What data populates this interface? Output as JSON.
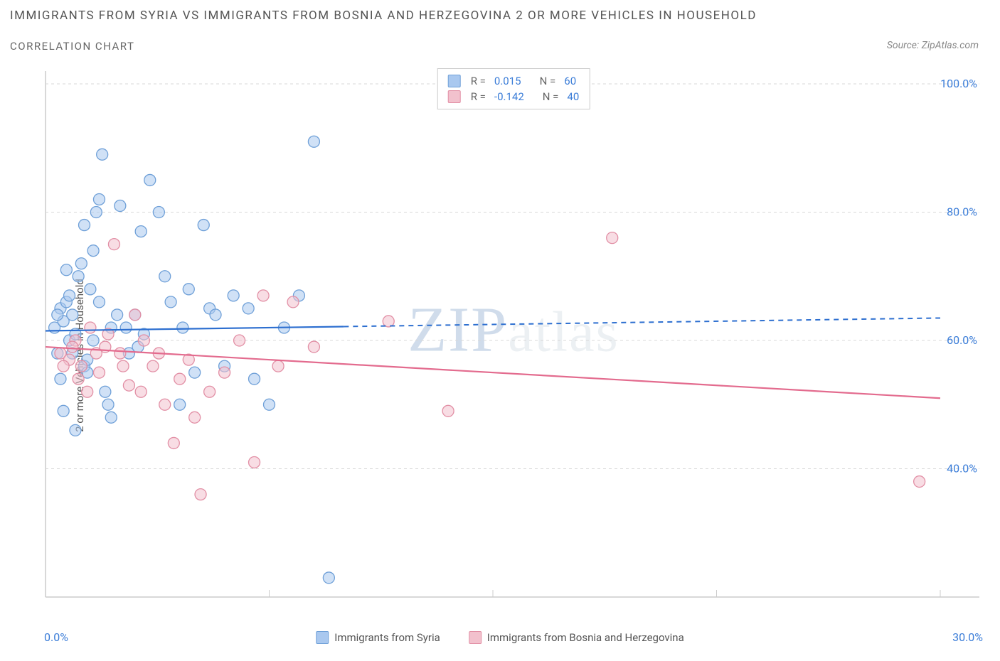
{
  "title": "IMMIGRANTS FROM SYRIA VS IMMIGRANTS FROM BOSNIA AND HERZEGOVINA 2 OR MORE VEHICLES IN HOUSEHOLD",
  "subtitle": "CORRELATION CHART",
  "source": "Source: ZipAtlas.com",
  "ylabel": "2 or more Vehicles in Household",
  "watermark_main": "ZIP",
  "watermark_sub": "atlas",
  "chart": {
    "type": "scatter",
    "background_color": "#ffffff",
    "grid_color": "#d8d8d8",
    "axis_color": "#cccccc",
    "tick_label_color": "#3b7dd8",
    "x_range": [
      0,
      30
    ],
    "y_range": [
      20,
      102
    ],
    "x_ticks": [
      0,
      30
    ],
    "x_tick_labels": [
      "0.0%",
      "30.0%"
    ],
    "y_ticks": [
      40,
      60,
      80,
      100
    ],
    "y_tick_labels": [
      "40.0%",
      "60.0%",
      "80.0%",
      "100.0%"
    ],
    "x_grid_at": [
      7.5,
      15,
      22.5,
      30
    ],
    "marker_radius": 8,
    "marker_opacity": 0.55,
    "series": [
      {
        "name": "Immigrants from Syria",
        "fill": "#a9c8ef",
        "stroke": "#6fa0d8",
        "line_color": "#2d6fd0",
        "R": "0.015",
        "N": "60",
        "trend": {
          "x1": 0,
          "y1": 61.5,
          "x2": 30,
          "y2": 63.5,
          "solid_until_x": 10
        },
        "points": [
          [
            0.3,
            62
          ],
          [
            0.4,
            58
          ],
          [
            0.5,
            65
          ],
          [
            0.6,
            63
          ],
          [
            0.7,
            66
          ],
          [
            0.8,
            60
          ],
          [
            0.9,
            64
          ],
          [
            1.0,
            61
          ],
          [
            1.1,
            70
          ],
          [
            1.2,
            72
          ],
          [
            1.3,
            56
          ],
          [
            1.4,
            55
          ],
          [
            1.5,
            68
          ],
          [
            1.6,
            74
          ],
          [
            1.7,
            80
          ],
          [
            1.8,
            82
          ],
          [
            1.9,
            89
          ],
          [
            2.0,
            52
          ],
          [
            2.1,
            50
          ],
          [
            2.2,
            48
          ],
          [
            2.5,
            81
          ],
          [
            2.7,
            62
          ],
          [
            3.0,
            64
          ],
          [
            3.2,
            77
          ],
          [
            3.5,
            85
          ],
          [
            3.8,
            80
          ],
          [
            4.0,
            70
          ],
          [
            4.2,
            66
          ],
          [
            4.5,
            50
          ],
          [
            4.8,
            68
          ],
          [
            5.0,
            55
          ],
          [
            5.3,
            78
          ],
          [
            5.5,
            65
          ],
          [
            6.0,
            56
          ],
          [
            6.3,
            67
          ],
          [
            6.8,
            65
          ],
          [
            7.0,
            54
          ],
          [
            7.5,
            50
          ],
          [
            8.0,
            62
          ],
          [
            8.5,
            67
          ],
          [
            9.0,
            91
          ],
          [
            9.5,
            23
          ],
          [
            1.0,
            46
          ],
          [
            0.6,
            49
          ],
          [
            0.8,
            67
          ],
          [
            1.3,
            78
          ],
          [
            0.4,
            64
          ],
          [
            0.9,
            58
          ],
          [
            2.2,
            62
          ],
          [
            1.6,
            60
          ],
          [
            2.8,
            58
          ],
          [
            3.3,
            61
          ],
          [
            4.6,
            62
          ],
          [
            0.5,
            54
          ],
          [
            1.4,
            57
          ],
          [
            0.7,
            71
          ],
          [
            1.8,
            66
          ],
          [
            2.4,
            64
          ],
          [
            3.1,
            59
          ],
          [
            5.7,
            64
          ]
        ]
      },
      {
        "name": "Immigrants from Bosnia and Herzegovina",
        "fill": "#f2c1cd",
        "stroke": "#e28fa5",
        "line_color": "#e36b8e",
        "R": "-0.142",
        "N": "40",
        "trend": {
          "x1": 0,
          "y1": 59,
          "x2": 30,
          "y2": 51,
          "solid_until_x": 30
        },
        "points": [
          [
            0.5,
            58
          ],
          [
            0.8,
            57
          ],
          [
            1.0,
            60
          ],
          [
            1.2,
            56
          ],
          [
            1.5,
            62
          ],
          [
            1.8,
            55
          ],
          [
            2.0,
            59
          ],
          [
            2.3,
            75
          ],
          [
            2.5,
            58
          ],
          [
            2.8,
            53
          ],
          [
            3.0,
            64
          ],
          [
            3.3,
            60
          ],
          [
            3.6,
            56
          ],
          [
            4.0,
            50
          ],
          [
            4.3,
            44
          ],
          [
            4.8,
            57
          ],
          [
            5.2,
            36
          ],
          [
            5.5,
            52
          ],
          [
            6.0,
            55
          ],
          [
            6.5,
            60
          ],
          [
            7.0,
            41
          ],
          [
            7.3,
            67
          ],
          [
            7.8,
            56
          ],
          [
            8.3,
            66
          ],
          [
            9.0,
            59
          ],
          [
            11.5,
            63
          ],
          [
            13.5,
            49
          ],
          [
            19.0,
            76
          ],
          [
            29.3,
            38
          ],
          [
            1.1,
            54
          ],
          [
            1.4,
            52
          ],
          [
            1.7,
            58
          ],
          [
            2.1,
            61
          ],
          [
            2.6,
            56
          ],
          [
            3.2,
            52
          ],
          [
            3.8,
            58
          ],
          [
            4.5,
            54
          ],
          [
            5.0,
            48
          ],
          [
            0.6,
            56
          ],
          [
            0.9,
            59
          ]
        ]
      }
    ]
  },
  "legend_bottom": [
    {
      "label": "Immigrants from Syria",
      "fill": "#a9c8ef",
      "stroke": "#6fa0d8"
    },
    {
      "label": "Immigrants from Bosnia and Herzegovina",
      "fill": "#f2c1cd",
      "stroke": "#e28fa5"
    }
  ]
}
